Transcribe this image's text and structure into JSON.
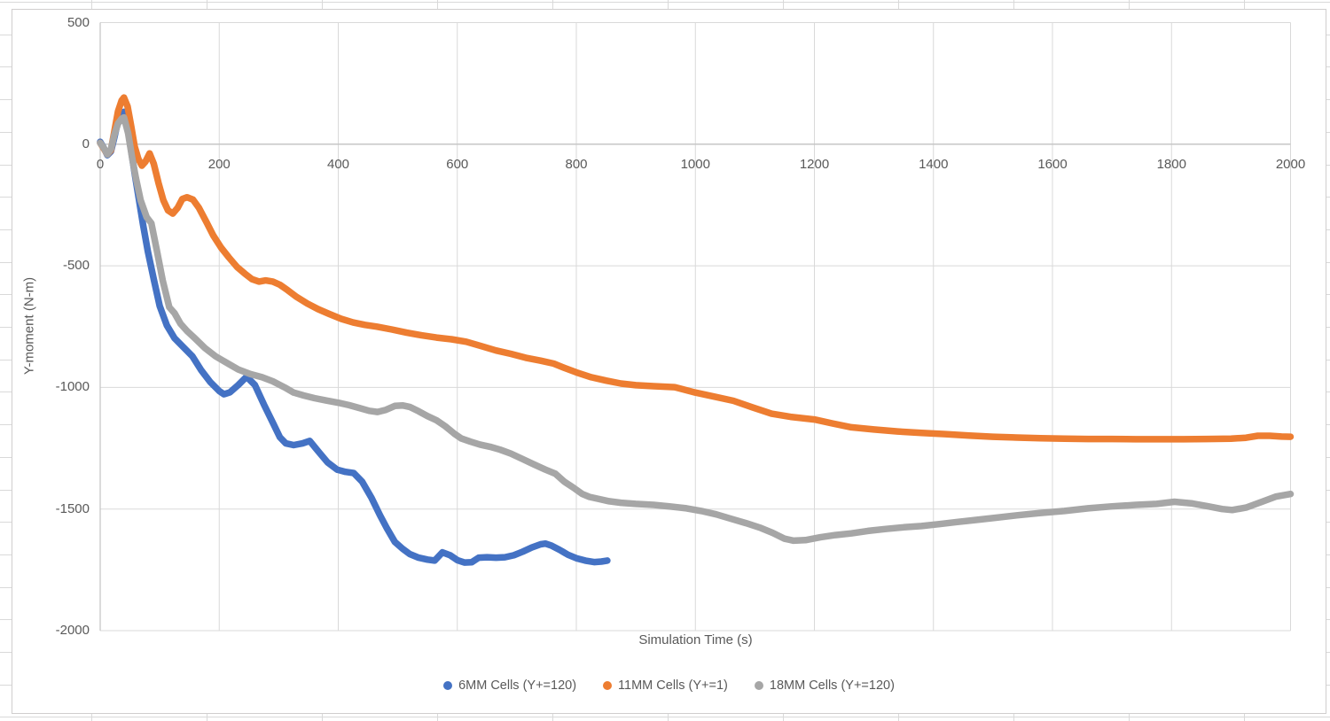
{
  "colors": {
    "background": "#FFFFFF",
    "sheet_gridline": "#D9D9D9",
    "chart_border": "#D0CECE",
    "plot_gridline": "#D9D9D9",
    "axis_line": "#C3C3C3",
    "text": "#595959",
    "series_blue": "#4472C4",
    "series_orange": "#ED7D31",
    "series_gray": "#A6A6A6"
  },
  "chart_data": {
    "type": "scatter",
    "title": "",
    "xlabel": "Simulation Time (s)",
    "ylabel": "Y-moment (N-m)",
    "xlim": [
      0,
      2000
    ],
    "ylim": [
      -2000,
      500
    ],
    "x_ticks": [
      0,
      200,
      400,
      600,
      800,
      1000,
      1200,
      1400,
      1600,
      1800,
      2000
    ],
    "y_ticks": [
      500,
      0,
      -500,
      -1000,
      -1500,
      -2000
    ],
    "grid": true,
    "legend_position": "bottom",
    "series": [
      {
        "name": "6MM Cells (Y+=120)",
        "color": "#4472C4",
        "points": [
          [
            0,
            10
          ],
          [
            6,
            -15
          ],
          [
            12,
            -45
          ],
          [
            18,
            -30
          ],
          [
            24,
            30
          ],
          [
            30,
            95
          ],
          [
            36,
            130
          ],
          [
            40,
            133
          ],
          [
            46,
            70
          ],
          [
            52,
            -25
          ],
          [
            58,
            -120
          ],
          [
            65,
            -225
          ],
          [
            72,
            -330
          ],
          [
            80,
            -440
          ],
          [
            90,
            -555
          ],
          [
            100,
            -665
          ],
          [
            112,
            -745
          ],
          [
            125,
            -798
          ],
          [
            140,
            -835
          ],
          [
            155,
            -872
          ],
          [
            170,
            -930
          ],
          [
            185,
            -978
          ],
          [
            200,
            -1015
          ],
          [
            208,
            -1028
          ],
          [
            218,
            -1020
          ],
          [
            232,
            -990
          ],
          [
            246,
            -956
          ],
          [
            260,
            -990
          ],
          [
            275,
            -1070
          ],
          [
            290,
            -1145
          ],
          [
            302,
            -1205
          ],
          [
            312,
            -1230
          ],
          [
            325,
            -1237
          ],
          [
            340,
            -1230
          ],
          [
            352,
            -1220
          ],
          [
            366,
            -1262
          ],
          [
            382,
            -1308
          ],
          [
            398,
            -1338
          ],
          [
            412,
            -1347
          ],
          [
            426,
            -1352
          ],
          [
            440,
            -1387
          ],
          [
            456,
            -1455
          ],
          [
            470,
            -1525
          ],
          [
            482,
            -1580
          ],
          [
            495,
            -1635
          ],
          [
            508,
            -1663
          ],
          [
            520,
            -1685
          ],
          [
            535,
            -1700
          ],
          [
            550,
            -1708
          ],
          [
            562,
            -1712
          ],
          [
            575,
            -1678
          ],
          [
            588,
            -1690
          ],
          [
            600,
            -1710
          ],
          [
            612,
            -1720
          ],
          [
            624,
            -1719
          ],
          [
            636,
            -1700
          ],
          [
            650,
            -1698
          ],
          [
            665,
            -1700
          ],
          [
            680,
            -1698
          ],
          [
            695,
            -1690
          ],
          [
            710,
            -1675
          ],
          [
            725,
            -1658
          ],
          [
            740,
            -1645
          ],
          [
            748,
            -1642
          ],
          [
            758,
            -1650
          ],
          [
            772,
            -1668
          ],
          [
            786,
            -1688
          ],
          [
            800,
            -1702
          ],
          [
            815,
            -1712
          ],
          [
            830,
            -1718
          ],
          [
            842,
            -1716
          ],
          [
            852,
            -1712
          ]
        ]
      },
      {
        "name": "11MM Cells (Y+=1)",
        "color": "#ED7D31",
        "points": [
          [
            0,
            5
          ],
          [
            6,
            -18
          ],
          [
            12,
            -42
          ],
          [
            18,
            -25
          ],
          [
            24,
            55
          ],
          [
            30,
            135
          ],
          [
            36,
            180
          ],
          [
            40,
            192
          ],
          [
            46,
            155
          ],
          [
            52,
            75
          ],
          [
            58,
            -10
          ],
          [
            64,
            -60
          ],
          [
            70,
            -88
          ],
          [
            76,
            -72
          ],
          [
            83,
            -38
          ],
          [
            90,
            -80
          ],
          [
            98,
            -160
          ],
          [
            106,
            -230
          ],
          [
            114,
            -272
          ],
          [
            122,
            -285
          ],
          [
            130,
            -262
          ],
          [
            138,
            -225
          ],
          [
            146,
            -218
          ],
          [
            156,
            -228
          ],
          [
            166,
            -262
          ],
          [
            178,
            -318
          ],
          [
            190,
            -375
          ],
          [
            203,
            -425
          ],
          [
            216,
            -465
          ],
          [
            230,
            -505
          ],
          [
            243,
            -532
          ],
          [
            255,
            -555
          ],
          [
            267,
            -565
          ],
          [
            278,
            -560
          ],
          [
            290,
            -565
          ],
          [
            302,
            -578
          ],
          [
            315,
            -600
          ],
          [
            330,
            -628
          ],
          [
            348,
            -655
          ],
          [
            366,
            -678
          ],
          [
            385,
            -698
          ],
          [
            405,
            -718
          ],
          [
            425,
            -733
          ],
          [
            445,
            -743
          ],
          [
            465,
            -750
          ],
          [
            490,
            -762
          ],
          [
            515,
            -775
          ],
          [
            540,
            -786
          ],
          [
            565,
            -795
          ],
          [
            590,
            -802
          ],
          [
            615,
            -812
          ],
          [
            640,
            -830
          ],
          [
            665,
            -848
          ],
          [
            690,
            -862
          ],
          [
            715,
            -878
          ],
          [
            740,
            -890
          ],
          [
            762,
            -902
          ],
          [
            780,
            -920
          ],
          [
            800,
            -938
          ],
          [
            825,
            -958
          ],
          [
            850,
            -972
          ],
          [
            875,
            -984
          ],
          [
            900,
            -991
          ],
          [
            930,
            -995
          ],
          [
            965,
            -999
          ],
          [
            1000,
            -1021
          ],
          [
            1032,
            -1038
          ],
          [
            1064,
            -1055
          ],
          [
            1096,
            -1082
          ],
          [
            1128,
            -1108
          ],
          [
            1160,
            -1121
          ],
          [
            1200,
            -1132
          ],
          [
            1230,
            -1148
          ],
          [
            1262,
            -1164
          ],
          [
            1300,
            -1173
          ],
          [
            1340,
            -1181
          ],
          [
            1380,
            -1187
          ],
          [
            1420,
            -1192
          ],
          [
            1460,
            -1198
          ],
          [
            1500,
            -1203
          ],
          [
            1540,
            -1206
          ],
          [
            1580,
            -1209
          ],
          [
            1620,
            -1211
          ],
          [
            1660,
            -1212
          ],
          [
            1700,
            -1212
          ],
          [
            1740,
            -1213
          ],
          [
            1780,
            -1213
          ],
          [
            1820,
            -1213
          ],
          [
            1860,
            -1212
          ],
          [
            1900,
            -1211
          ],
          [
            1925,
            -1207
          ],
          [
            1945,
            -1199
          ],
          [
            1965,
            -1199
          ],
          [
            1985,
            -1202
          ],
          [
            2000,
            -1203
          ]
        ]
      },
      {
        "name": "18MM Cells (Y+=120)",
        "color": "#A6A6A6",
        "points": [
          [
            0,
            5
          ],
          [
            6,
            -15
          ],
          [
            12,
            -42
          ],
          [
            18,
            -20
          ],
          [
            24,
            40
          ],
          [
            30,
            85
          ],
          [
            36,
            105
          ],
          [
            40,
            110
          ],
          [
            47,
            45
          ],
          [
            54,
            -60
          ],
          [
            60,
            -140
          ],
          [
            68,
            -230
          ],
          [
            78,
            -300
          ],
          [
            86,
            -325
          ],
          [
            95,
            -435
          ],
          [
            105,
            -560
          ],
          [
            116,
            -670
          ],
          [
            125,
            -695
          ],
          [
            135,
            -738
          ],
          [
            146,
            -768
          ],
          [
            160,
            -800
          ],
          [
            176,
            -838
          ],
          [
            194,
            -872
          ],
          [
            212,
            -898
          ],
          [
            232,
            -926
          ],
          [
            252,
            -945
          ],
          [
            272,
            -958
          ],
          [
            290,
            -975
          ],
          [
            310,
            -1000
          ],
          [
            325,
            -1021
          ],
          [
            342,
            -1033
          ],
          [
            360,
            -1044
          ],
          [
            380,
            -1054
          ],
          [
            400,
            -1063
          ],
          [
            418,
            -1073
          ],
          [
            436,
            -1085
          ],
          [
            452,
            -1096
          ],
          [
            466,
            -1101
          ],
          [
            480,
            -1092
          ],
          [
            495,
            -1076
          ],
          [
            508,
            -1074
          ],
          [
            520,
            -1080
          ],
          [
            535,
            -1098
          ],
          [
            550,
            -1118
          ],
          [
            565,
            -1135
          ],
          [
            580,
            -1160
          ],
          [
            595,
            -1190
          ],
          [
            607,
            -1210
          ],
          [
            622,
            -1223
          ],
          [
            638,
            -1235
          ],
          [
            655,
            -1244
          ],
          [
            672,
            -1256
          ],
          [
            690,
            -1272
          ],
          [
            710,
            -1295
          ],
          [
            730,
            -1318
          ],
          [
            748,
            -1338
          ],
          [
            765,
            -1355
          ],
          [
            780,
            -1388
          ],
          [
            795,
            -1412
          ],
          [
            810,
            -1438
          ],
          [
            822,
            -1450
          ],
          [
            838,
            -1459
          ],
          [
            855,
            -1468
          ],
          [
            875,
            -1474
          ],
          [
            900,
            -1479
          ],
          [
            930,
            -1483
          ],
          [
            960,
            -1490
          ],
          [
            985,
            -1497
          ],
          [
            1010,
            -1508
          ],
          [
            1035,
            -1522
          ],
          [
            1060,
            -1540
          ],
          [
            1085,
            -1558
          ],
          [
            1110,
            -1578
          ],
          [
            1130,
            -1598
          ],
          [
            1150,
            -1622
          ],
          [
            1165,
            -1630
          ],
          [
            1185,
            -1628
          ],
          [
            1210,
            -1616
          ],
          [
            1235,
            -1607
          ],
          [
            1262,
            -1600
          ],
          [
            1290,
            -1590
          ],
          [
            1320,
            -1582
          ],
          [
            1350,
            -1575
          ],
          [
            1380,
            -1570
          ],
          [
            1410,
            -1562
          ],
          [
            1440,
            -1553
          ],
          [
            1470,
            -1545
          ],
          [
            1500,
            -1537
          ],
          [
            1540,
            -1526
          ],
          [
            1580,
            -1516
          ],
          [
            1620,
            -1508
          ],
          [
            1660,
            -1497
          ],
          [
            1700,
            -1489
          ],
          [
            1740,
            -1483
          ],
          [
            1775,
            -1479
          ],
          [
            1805,
            -1470
          ],
          [
            1835,
            -1477
          ],
          [
            1860,
            -1488
          ],
          [
            1885,
            -1500
          ],
          [
            1902,
            -1504
          ],
          [
            1925,
            -1494
          ],
          [
            1950,
            -1472
          ],
          [
            1975,
            -1449
          ],
          [
            2000,
            -1438
          ]
        ]
      }
    ]
  }
}
